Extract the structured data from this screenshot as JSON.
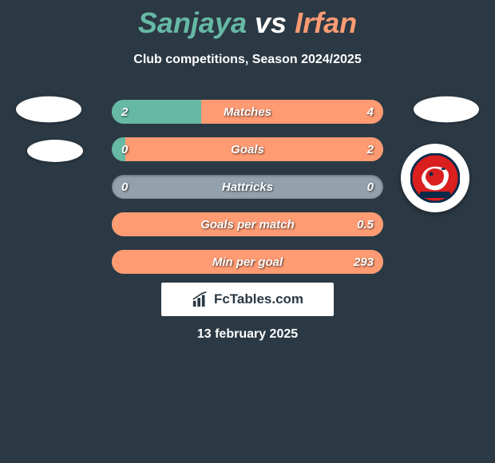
{
  "title": {
    "player1": "Sanjaya",
    "vs": "vs",
    "player2": "Irfan",
    "player1_color": "#66b9a4",
    "player2_color": "#ff9b73",
    "vs_color": "#ffffff"
  },
  "subtitle": "Club competitions, Season 2024/2025",
  "background_color": "#2b3944",
  "left_color": "#66b9a4",
  "right_color": "#ff9b73",
  "neutral_color": "#93a1ac",
  "stats": [
    {
      "label": "Matches",
      "left_val": "2",
      "right_val": "4",
      "left_pct": 33,
      "right_pct": 67
    },
    {
      "label": "Goals",
      "left_val": "0",
      "right_val": "2",
      "left_pct": 5,
      "right_pct": 95
    },
    {
      "label": "Hattricks",
      "left_val": "0",
      "right_val": "0",
      "left_pct": 0,
      "right_pct": 0
    },
    {
      "label": "Goals per match",
      "left_val": "",
      "right_val": "0.5",
      "left_pct": 0,
      "right_pct": 100
    },
    {
      "label": "Min per goal",
      "left_val": "",
      "right_val": "293",
      "left_pct": 0,
      "right_pct": 100
    }
  ],
  "logo": {
    "brand": "FcTables.com"
  },
  "date": "13 february 2025"
}
